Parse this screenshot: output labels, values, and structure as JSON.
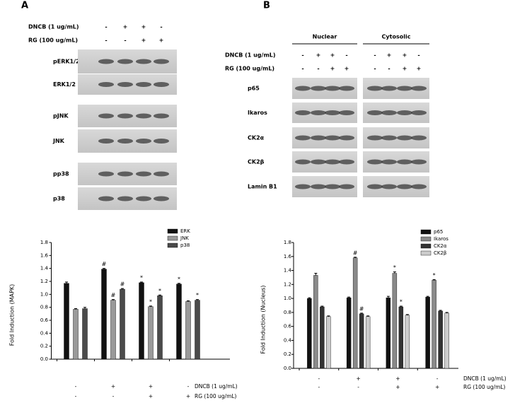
{
  "blots": [
    {
      "label": "A",
      "treatments": [
        {
          "name": "DNCB (1 ug/mL)",
          "signs": [
            "-",
            "+",
            "+",
            "-"
          ]
        },
        {
          "name": "RG (100 ug/mL)",
          "signs": [
            "-",
            "-",
            "+",
            "+"
          ]
        }
      ],
      "rows": [
        "pERK1/2",
        "ERK1/2",
        "pJNK",
        "JNK",
        "pp38",
        "p38"
      ]
    },
    {
      "label": "B",
      "groups": [
        "Nuclear",
        "Cytosolic"
      ],
      "treatments": [
        {
          "name": "DNCB (1 ug/mL)",
          "signs": [
            "-",
            "+",
            "+",
            "-"
          ]
        },
        {
          "name": "RG (100 ug/mL)",
          "signs": [
            "-",
            "-",
            "+",
            "+"
          ]
        }
      ],
      "rows": [
        "p65",
        "Ikaros",
        "CK2α",
        "CK2β",
        "Lamin B1"
      ]
    }
  ],
  "chart_data": [
    {
      "type": "bar",
      "y_label": "Fold Induction (MAPK)",
      "categories": [
        null,
        null,
        null,
        null
      ],
      "treatments": [
        {
          "name": "DNCB (1 ug/mL)",
          "signs": [
            "-",
            "+",
            "+",
            "-"
          ]
        },
        {
          "name": "RG (100 ug/mL)",
          "signs": [
            "-",
            "-",
            "+",
            "+"
          ]
        }
      ],
      "series": [
        {
          "name": "ERK",
          "color": "#111111",
          "values": [
            1.17,
            1.39,
            1.18,
            1.16
          ],
          "errors": [
            0.02,
            0.01,
            0.01,
            0.01
          ],
          "markers": [
            null,
            "#",
            "*",
            "*"
          ]
        },
        {
          "name": "JNK",
          "color": "#9a9a9a",
          "values": [
            0.77,
            0.91,
            0.81,
            0.89
          ],
          "errors": [
            0.01,
            0.01,
            0.01,
            0.01
          ],
          "markers": [
            null,
            "#",
            "*",
            null
          ]
        },
        {
          "name": "p38",
          "color": "#4a4a4a",
          "values": [
            0.78,
            1.08,
            0.98,
            0.91
          ],
          "errors": [
            0.02,
            0.01,
            0.01,
            0.01
          ],
          "markers": [
            null,
            "#",
            "*",
            "*"
          ]
        }
      ],
      "ylim": [
        0,
        1.8
      ],
      "yticks": [
        {
          "value": 0,
          "label": "0.0"
        },
        {
          "value": 0.2,
          "label": "0.2"
        },
        {
          "value": 0.4,
          "label": "0.4"
        },
        {
          "value": 0.6,
          "label": "0.6"
        },
        {
          "value": 0.8,
          "label": "0.8"
        },
        {
          "value": 1,
          "label": "1.0"
        },
        1.2,
        1.4,
        1.6,
        1.8
      ]
    },
    {
      "type": "bar",
      "y_label": "Fold Induction (Nucleus)",
      "categories": [
        null,
        null,
        null,
        null
      ],
      "treatments": [
        {
          "name": "DNCB (1 ug/mL)",
          "signs": [
            "-",
            "+",
            "+",
            "-"
          ]
        },
        {
          "name": "RG (100 ug/mL)",
          "signs": [
            "-",
            "-",
            "+",
            "+"
          ]
        }
      ],
      "series": [
        {
          "name": "p65",
          "color": "#111111",
          "values": [
            1.0,
            1.01,
            1.01,
            1.02
          ],
          "errors": [
            0.01,
            0.01,
            0.02,
            0.01
          ],
          "markers": [
            null,
            null,
            null,
            null
          ]
        },
        {
          "name": "Ikaros",
          "color": "#8a8a8a",
          "values": [
            1.33,
            1.58,
            1.36,
            1.26
          ],
          "errors": [
            0.03,
            0.01,
            0.02,
            0.01
          ],
          "markers": [
            null,
            "#",
            "*",
            "*"
          ]
        },
        {
          "name": "CK2α",
          "color": "#333333",
          "values": [
            0.88,
            0.78,
            0.88,
            0.82
          ],
          "errors": [
            0.01,
            0.01,
            0.01,
            0.01
          ],
          "markers": [
            null,
            "#",
            "*",
            null
          ]
        },
        {
          "name": "CK2β",
          "color": "#cccccc",
          "values": [
            0.74,
            0.74,
            0.76,
            0.79
          ],
          "errors": [
            0.01,
            0.01,
            0.01,
            0.01
          ],
          "markers": [
            null,
            null,
            null,
            null
          ]
        }
      ],
      "ylim": [
        0,
        1.8
      ],
      "yticks": [
        {
          "value": 0,
          "label": "0.0"
        },
        {
          "value": 0.2,
          "label": "0.2"
        },
        {
          "value": 0.4,
          "label": "0.4"
        },
        {
          "value": 0.6,
          "label": "0.6"
        },
        {
          "value": 0.8,
          "label": "0.8"
        },
        {
          "value": 1,
          "label": "1.0"
        },
        1.2,
        1.4,
        1.6,
        1.8
      ]
    }
  ]
}
